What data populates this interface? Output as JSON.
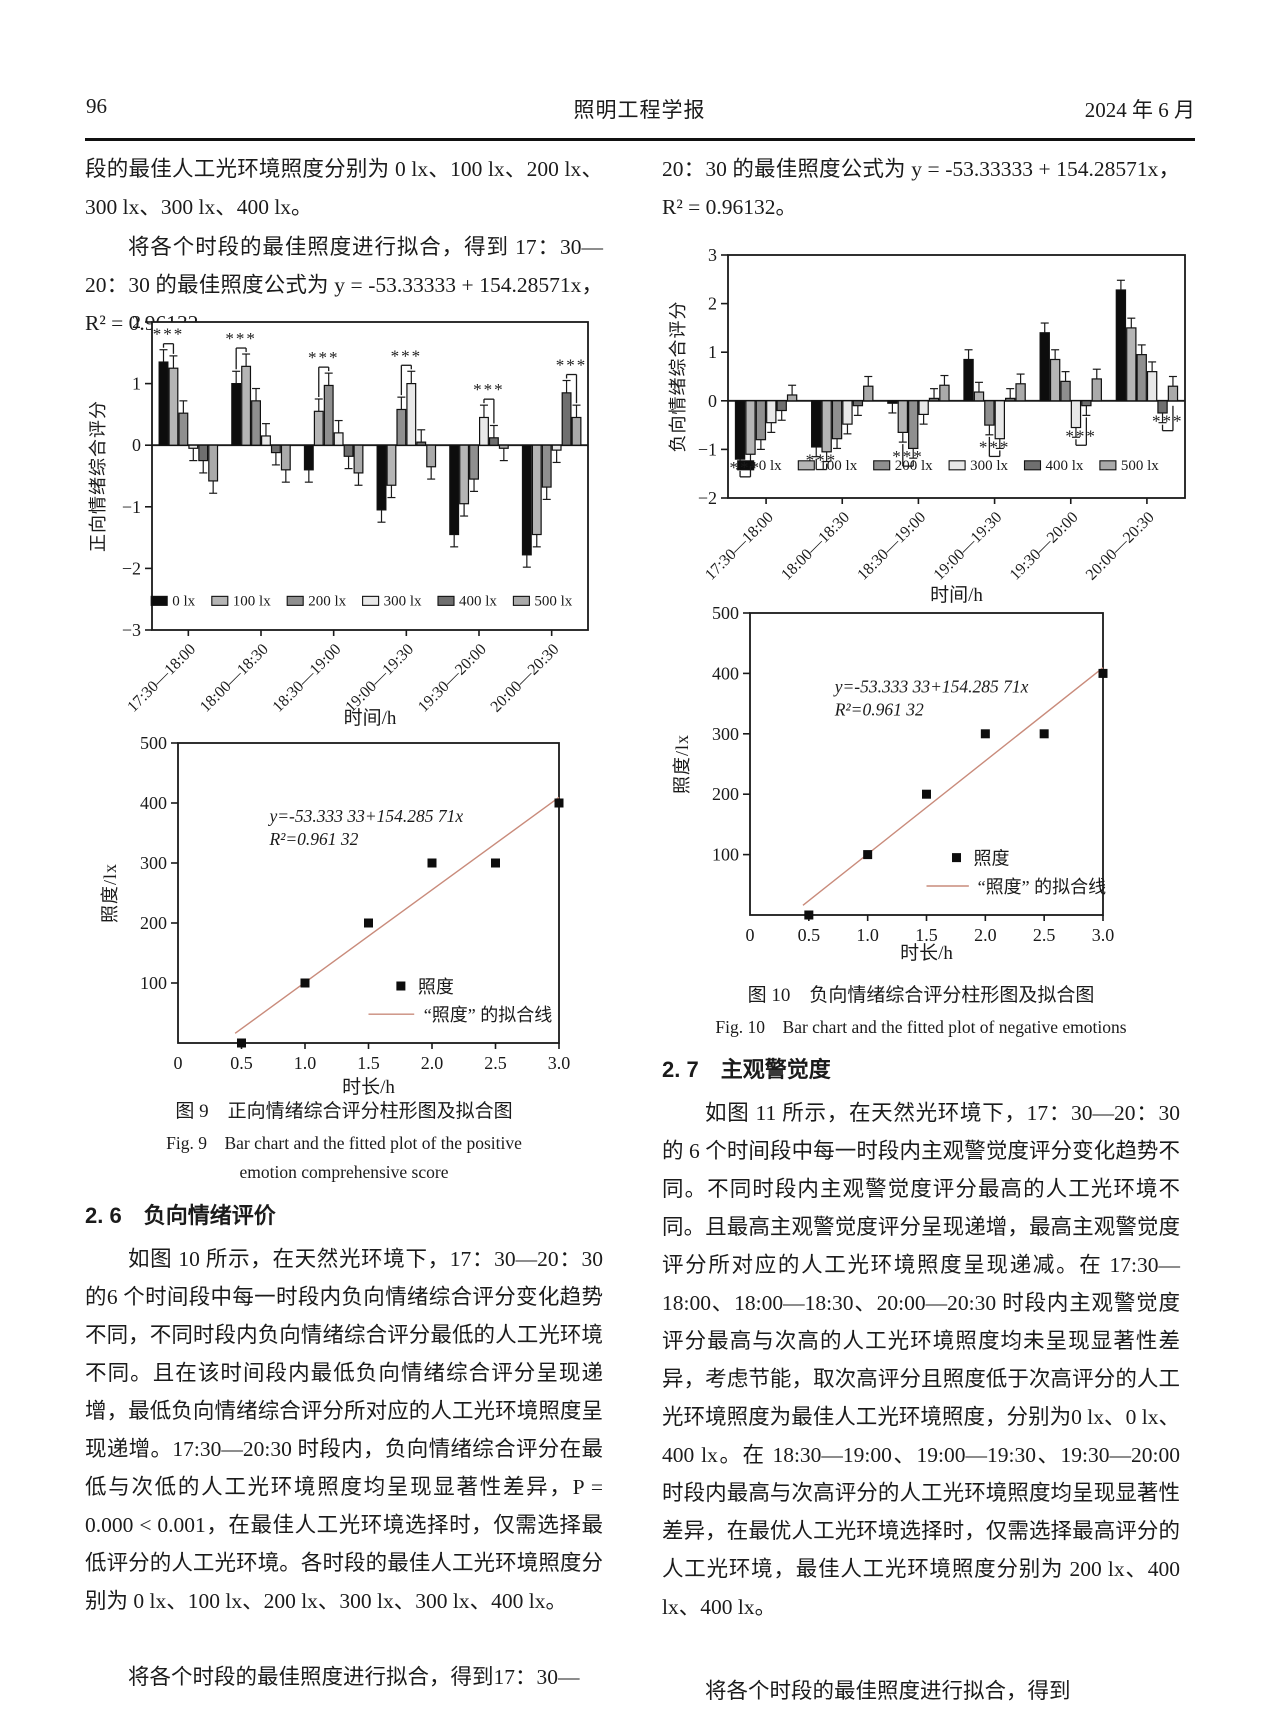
{
  "header": {
    "page_number": "96",
    "journal_title": "照明工程学报",
    "issue_date": "2024 年 6 月"
  },
  "left_column": {
    "para_top_1": "段的最佳人工光环境照度分别为 0 lx、100 lx、200 lx、300 lx、300 lx、400 lx。",
    "para_top_2": "将各个时段的最佳照度进行拟合，得到 17：30—20：30 的最佳照度公式为 y = -53.33333 + 154.28571x，R² = 0.96132。",
    "fig9_caption_zh": "图 9　正向情绪综合评分柱形图及拟合图",
    "fig9_caption_en_line1": "Fig. 9　Bar chart and the fitted plot of the positive",
    "fig9_caption_en_line2": "emotion comprehensive score",
    "section_heading": "2. 6　负向情绪评价",
    "para_body": "如图 10 所示，在天然光环境下，17：30—20：30 的6 个时间段中每一时段内负向情绪综合评分变化趋势不同，不同时段内负向情绪综合评分最低的人工光环境不同。且在该时间段内最低负向情绪综合评分呈现递增，最低负向情绪综合评分所对应的人工光环境照度呈现递增。17:30—20:30 时段内，负向情绪综合评分在最低与次低的人工光环境照度均呈现显著性差异，P = 0.000 < 0.001，在最佳人工光环境选择时，仅需选择最低评分的人工光环境。各时段的最佳人工光环境照度分别为 0 lx、100 lx、200 lx、300 lx、300 lx、400 lx。",
    "para_last": "将各个时段的最佳照度进行拟合，得到17：30—"
  },
  "right_column": {
    "para_top": "20：30 的最佳照度公式为 y = -53.33333 + 154.28571x，R² = 0.96132。",
    "fig10_caption_zh": "图 10　负向情绪综合评分柱形图及拟合图",
    "fig10_caption_en": "Fig. 10　Bar chart and the fitted plot of negative emotions",
    "section_heading": "2. 7　主观警觉度",
    "para_body": "如图 11 所示，在天然光环境下，17：30—20：30的 6 个时间段中每一时段内主观警觉度评分变化趋势不同。不同时段内主观警觉度评分最高的人工光环境不同。且最高主观警觉度评分呈现递增，最高主观警觉度评分所对应的人工光环境照度呈现递减。在 17:30—18:00、18:00—18:30、20:00—20:30 时段内主观警觉度评分最高与次高的人工光环境照度均未呈现显著性差异，考虑节能，取次高评分且照度低于次高评分的人工光环境照度为最佳人工光环境照度，分别为0 lx、0 lx、400 lx。在 18:30—19:00、19:00—19:30、19:30—20:00时段内最高与次高评分的人工光环境照度均呈现显著性差异，在最优人工光环境选择时，仅需选择最高评分的人工光环境，最佳人工光环境照度分别为 200 lx、400 lx、400 lx。",
    "para_last": "将各个时段的最佳照度进行拟合，得到"
  },
  "chart_data": [
    {
      "id": "fig9-bar",
      "type": "bar",
      "ylabel": "正向情绪综合评分",
      "xlabel": "时间/h",
      "ylim": [
        -3,
        2
      ],
      "yticks": [
        -3,
        -2,
        -1,
        0,
        1,
        2
      ],
      "categories": [
        "17:30—18:00",
        "18:00—18:30",
        "18:30—19:00",
        "19:00—19:30",
        "19:30—20:00",
        "20:00—20:30"
      ],
      "series": [
        {
          "name": "0 lx",
          "color": "#0d0d0d",
          "values": [
            1.35,
            1.0,
            -0.4,
            -1.05,
            -1.45,
            -1.78
          ]
        },
        {
          "name": "100 lx",
          "color": "#b5b5b5",
          "values": [
            1.25,
            1.28,
            0.55,
            -0.65,
            -0.95,
            -1.45
          ]
        },
        {
          "name": "200 lx",
          "color": "#8f8f8f",
          "values": [
            0.52,
            0.72,
            0.97,
            0.58,
            -0.55,
            -0.68
          ]
        },
        {
          "name": "300 lx",
          "color": "#e8e8e8",
          "values": [
            -0.05,
            0.15,
            0.2,
            1.0,
            0.45,
            -0.08
          ]
        },
        {
          "name": "400 lx",
          "color": "#6f6f6f",
          "values": [
            -0.25,
            -0.12,
            -0.18,
            0.05,
            0.12,
            0.85
          ]
        },
        {
          "name": "500 lx",
          "color": "#aaaaaa",
          "values": [
            -0.58,
            -0.4,
            -0.45,
            -0.35,
            -0.05,
            0.45
          ]
        }
      ],
      "error_bar": 0.2,
      "sig_label": "***",
      "sig_side": "above",
      "sig": [
        {
          "cat": 0,
          "pair": [
            0,
            1
          ]
        },
        {
          "cat": 1,
          "pair": [
            0,
            1
          ]
        },
        {
          "cat": 2,
          "pair": [
            1,
            2
          ]
        },
        {
          "cat": 3,
          "pair": [
            2,
            3
          ]
        },
        {
          "cat": 4,
          "pair": [
            3,
            4
          ]
        },
        {
          "cat": 5,
          "pair": [
            4,
            5
          ]
        }
      ],
      "legend_position": "inside-bottom"
    },
    {
      "id": "fig9-fit",
      "type": "scatter",
      "x": [
        0.5,
        1.0,
        1.5,
        2.0,
        2.5,
        3.0
      ],
      "y": [
        0,
        100,
        200,
        300,
        300,
        400
      ],
      "fit_line": {
        "intercept": -53.33333,
        "slope": 154.28571,
        "color": "#c98b7b"
      },
      "annotation_line1": "y=-53.333 33+154.285 71x",
      "annotation_line2": "R²=0.961 32",
      "legend_point": "照度",
      "legend_line": "“照度” 的拟合线",
      "xlabel": "时长/h",
      "ylabel": "照度/lx",
      "xlim": [
        0,
        3
      ],
      "ylim": [
        0,
        500
      ],
      "xticks": [
        0,
        0.5,
        1.0,
        1.5,
        2.0,
        2.5,
        3.0
      ],
      "yticks": [
        100,
        200,
        300,
        400,
        500
      ]
    },
    {
      "id": "fig10-bar",
      "type": "bar",
      "ylabel": "负向情绪综合评分",
      "xlabel": "时间/h",
      "ylim": [
        -2,
        3
      ],
      "yticks": [
        -2,
        -1,
        0,
        1,
        2,
        3
      ],
      "categories": [
        "17:30—18:00",
        "18:00—18:30",
        "18:30—19:00",
        "19:00—19:30",
        "19:30—20:00",
        "20:00—20:30"
      ],
      "series": [
        {
          "name": "0 lx",
          "color": "#0d0d0d",
          "values": [
            -1.2,
            -0.95,
            -0.05,
            0.85,
            1.4,
            2.28
          ]
        },
        {
          "name": "100 lx",
          "color": "#b5b5b5",
          "values": [
            -1.1,
            -1.05,
            -0.65,
            0.18,
            0.85,
            1.5
          ]
        },
        {
          "name": "200 lx",
          "color": "#8f8f8f",
          "values": [
            -0.8,
            -0.78,
            -0.98,
            -0.5,
            0.4,
            0.95
          ]
        },
        {
          "name": "300 lx",
          "color": "#e8e8e8",
          "values": [
            -0.45,
            -0.48,
            -0.28,
            -0.78,
            -0.55,
            0.6
          ]
        },
        {
          "name": "400 lx",
          "color": "#6f6f6f",
          "values": [
            -0.2,
            -0.1,
            0.05,
            0.05,
            -0.1,
            -0.25
          ]
        },
        {
          "name": "500 lx",
          "color": "#aaaaaa",
          "values": [
            0.12,
            0.3,
            0.32,
            0.35,
            0.45,
            0.3
          ]
        }
      ],
      "error_bar": 0.2,
      "sig_label": "***",
      "sig_side": "below",
      "sig": [
        {
          "cat": 0,
          "pair": [
            0,
            1
          ]
        },
        {
          "cat": 1,
          "pair": [
            0,
            1
          ]
        },
        {
          "cat": 2,
          "pair": [
            1,
            2
          ]
        },
        {
          "cat": 3,
          "pair": [
            2,
            3
          ]
        },
        {
          "cat": 4,
          "pair": [
            3,
            4
          ]
        },
        {
          "cat": 5,
          "pair": [
            4,
            5
          ]
        }
      ],
      "legend_position": "inside-bottom"
    },
    {
      "id": "fig10-fit",
      "type": "scatter",
      "x": [
        0.5,
        1.0,
        1.5,
        2.0,
        2.5,
        3.0
      ],
      "y": [
        0,
        100,
        200,
        300,
        300,
        400
      ],
      "fit_line": {
        "intercept": -53.33333,
        "slope": 154.28571,
        "color": "#c98b7b"
      },
      "annotation_line1": "y=-53.333 33+154.285 71x",
      "annotation_line2": "R²=0.961 32",
      "legend_point": "照度",
      "legend_line": "“照度” 的拟合线",
      "xlabel": "时长/h",
      "ylabel": "照度/lx",
      "xlim": [
        0,
        3
      ],
      "ylim": [
        0,
        500
      ],
      "xticks": [
        0,
        0.5,
        1.0,
        1.5,
        2.0,
        2.5,
        3.0
      ],
      "yticks": [
        100,
        200,
        300,
        400,
        500
      ]
    }
  ]
}
